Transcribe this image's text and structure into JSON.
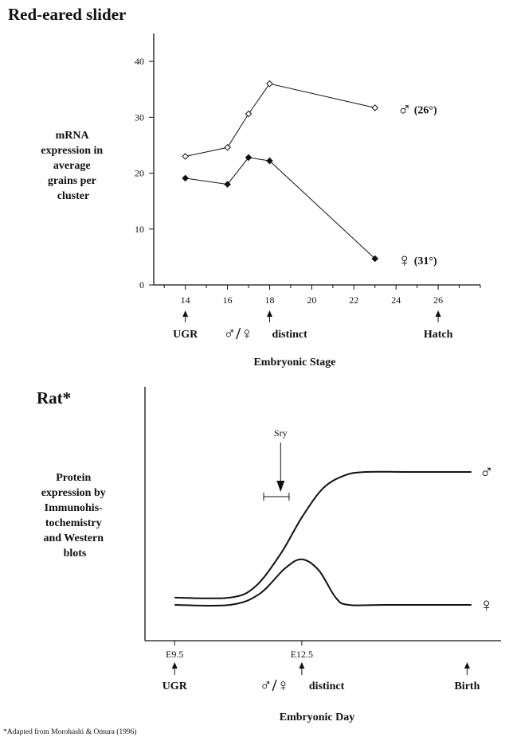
{
  "chart_data": [
    {
      "type": "line",
      "title": "Red-eared slider",
      "ylabel": "mRNA\nexpression in\naverage\ngrains per\ncluster",
      "xlabel": "Embryonic Stage",
      "xlim": [
        12.5,
        28
      ],
      "ylim": [
        0,
        45
      ],
      "xticks": [
        14,
        16,
        18,
        20,
        22,
        24,
        26
      ],
      "yticks": [
        0,
        10,
        20,
        30,
        40
      ],
      "series": [
        {
          "name": "♂ (26°)",
          "marker": "open-diamond",
          "x": [
            14,
            16,
            17,
            18,
            23
          ],
          "y": [
            23,
            24.6,
            30.6,
            36,
            31.7
          ]
        },
        {
          "name": "♀ (31°)",
          "marker": "filled-diamond",
          "x": [
            14,
            16,
            17,
            18,
            23
          ],
          "y": [
            19.1,
            18,
            22.8,
            22.2,
            4.7
          ]
        }
      ],
      "annotations": [
        {
          "x": 14,
          "label": "UGR"
        },
        {
          "x": 18,
          "label": "♂/♀ distinct"
        },
        {
          "x": 26,
          "label": "Hatch"
        }
      ],
      "grid": false
    },
    {
      "type": "line",
      "title": "Rat*",
      "ylabel": "Protein\nexpression by\nImmunohis-\ntochemistry\nand Western\nblots",
      "xlabel": "Embryonic Day",
      "xlim": [
        8.8,
        17.2
      ],
      "ylim": [
        0,
        1
      ],
      "xticks": [
        "E9.5",
        "E12.5"
      ],
      "series": [
        {
          "name": "♂",
          "x": [
            9.5,
            10.8,
            11.4,
            12.0,
            12.5,
            13.0,
            13.5,
            14.0,
            15.0,
            16.5
          ],
          "y": [
            0.16,
            0.16,
            0.22,
            0.4,
            0.6,
            0.76,
            0.83,
            0.85,
            0.85,
            0.85
          ]
        },
        {
          "name": "♀",
          "x": [
            9.5,
            10.8,
            11.5,
            12.1,
            12.5,
            12.9,
            13.3,
            13.6,
            14.5,
            16.5
          ],
          "y": [
            0.12,
            0.12,
            0.18,
            0.32,
            0.37,
            0.31,
            0.16,
            0.12,
            0.12,
            0.12
          ]
        }
      ],
      "annotations": [
        {
          "x": 12.0,
          "label": "Sry",
          "range": [
            11.6,
            12.2
          ]
        },
        {
          "x": 9.5,
          "label": "UGR"
        },
        {
          "x": 12.5,
          "label": "♂/♀ distinct"
        },
        {
          "x": 16.4,
          "label": "Birth"
        }
      ],
      "footnote": "*Adapted from Morohashi & Omura (1996)",
      "grid": false
    }
  ]
}
